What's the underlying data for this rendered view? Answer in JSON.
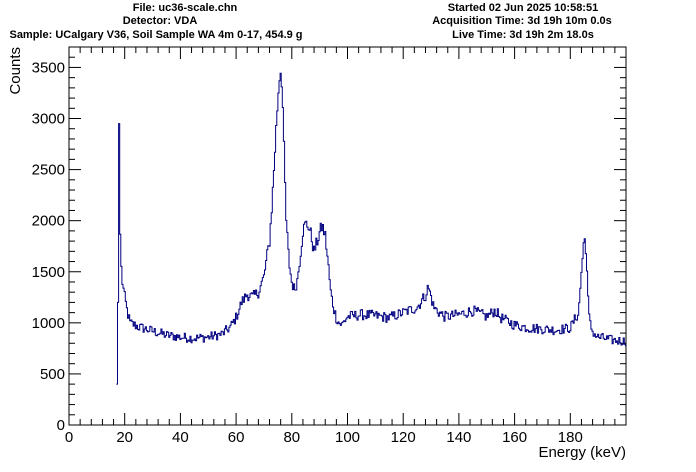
{
  "header": {
    "file": "File: uc36-scale.chn",
    "detector": "Detector: VDA",
    "sample": "Sample: UCalgary V36, Soil Sample WA 4m 0-17, 454.9 g",
    "started": "Started 02 Jun 2025 10:58:51",
    "acquisition_time": "Acquisition Time: 3d 19h 10m 0.0s",
    "live_time": "Live Time: 3d 19h 2m 18.0s"
  },
  "chart_data": {
    "type": "line",
    "subtype": "step histogram",
    "xlabel": "Energy (keV)",
    "ylabel": "Counts",
    "xlim": [
      0,
      200
    ],
    "ylim": [
      0,
      3700
    ],
    "xticks": [
      0,
      20,
      40,
      60,
      80,
      100,
      120,
      140,
      160,
      180
    ],
    "yticks": [
      0,
      500,
      1000,
      1500,
      2000,
      2500,
      3000,
      3500
    ],
    "grid": false,
    "legend": "none",
    "line_color": "#000080",
    "series": [
      {
        "x": [
          0,
          17,
          17.6,
          17.9,
          18.1,
          18.3,
          18.6,
          19.2,
          20,
          21,
          22,
          25,
          30,
          35,
          40,
          45,
          50,
          55,
          58,
          60,
          62,
          64,
          66,
          68,
          70,
          72,
          73,
          74,
          75,
          75.8,
          76.3,
          76.8,
          77.3,
          78,
          79,
          80,
          81,
          82,
          83,
          84,
          85,
          86,
          87,
          88,
          89,
          90,
          91,
          92,
          93,
          94,
          95,
          96,
          97,
          98,
          100,
          105,
          110,
          115,
          120,
          125,
          128,
          129,
          130,
          131,
          133,
          135,
          140,
          145,
          150,
          153,
          155,
          160,
          165,
          170,
          175,
          180,
          183,
          184,
          185,
          185.5,
          186,
          186.5,
          187,
          188,
          189,
          190,
          192,
          195,
          200
        ],
        "y": [
          0,
          0,
          1200,
          3200,
          2700,
          2000,
          1600,
          1400,
          1250,
          1100,
          1000,
          960,
          920,
          880,
          860,
          850,
          860,
          890,
          960,
          1050,
          1200,
          1280,
          1250,
          1300,
          1450,
          1800,
          2200,
          2700,
          3200,
          3490,
          3450,
          3100,
          2600,
          2000,
          1600,
          1400,
          1320,
          1420,
          1650,
          1900,
          1970,
          1950,
          1850,
          1700,
          1780,
          1880,
          1950,
          1850,
          1600,
          1300,
          1150,
          1050,
          1000,
          980,
          1060,
          1080,
          1070,
          1050,
          1100,
          1150,
          1270,
          1350,
          1260,
          1150,
          1100,
          1060,
          1080,
          1120,
          1060,
          1120,
          1050,
          980,
          950,
          940,
          930,
          950,
          1100,
          1500,
          1830,
          1800,
          1500,
          1150,
          1000,
          920,
          880,
          860,
          850,
          830,
          820
        ]
      }
    ]
  }
}
